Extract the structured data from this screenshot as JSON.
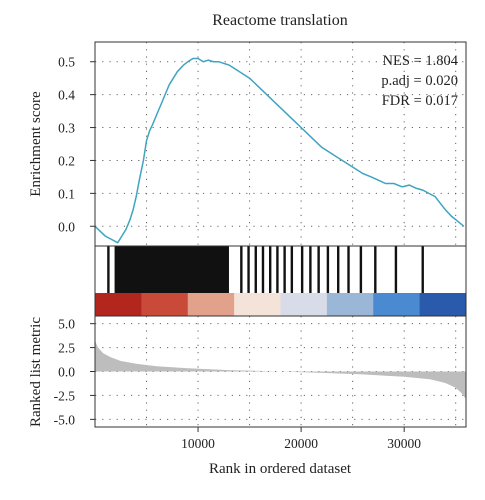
{
  "chart_data": [
    {
      "panel": "enrichment",
      "type": "line",
      "title": "Reactome translation",
      "ylabel": "Enrichment score",
      "xlim": [
        0,
        36000
      ],
      "ylim": [
        -0.06,
        0.56
      ],
      "yticks": [
        0.0,
        0.1,
        0.2,
        0.3,
        0.4,
        0.5
      ],
      "ytick_labels": [
        "0.0",
        "0.1",
        "0.2",
        "0.3",
        "0.4",
        "0.5"
      ],
      "grid": true,
      "series": [
        {
          "color": "#3fa4c0",
          "x": [
            0,
            1000,
            1600,
            2200,
            2600,
            3000,
            3400,
            3700,
            4000,
            4300,
            4700,
            5000,
            5300,
            5600,
            6000,
            6400,
            6800,
            7200,
            7600,
            8000,
            8300,
            8600,
            9000,
            9500,
            10000,
            10500,
            11000,
            11500,
            12000,
            12500,
            13000,
            13500,
            14000,
            15000,
            16000,
            17000,
            18000,
            19000,
            20000,
            21000,
            22000,
            23000,
            24000,
            25000,
            26000,
            26800,
            27500,
            28200,
            29000,
            29800,
            30500,
            31200,
            31800,
            32400,
            33000,
            33500,
            34000,
            34600,
            35200,
            35800
          ],
          "y": [
            0.0,
            -0.03,
            -0.04,
            -0.05,
            -0.03,
            -0.01,
            0.02,
            0.05,
            0.09,
            0.14,
            0.2,
            0.26,
            0.29,
            0.31,
            0.34,
            0.37,
            0.4,
            0.43,
            0.45,
            0.47,
            0.48,
            0.49,
            0.5,
            0.51,
            0.51,
            0.5,
            0.505,
            0.5,
            0.5,
            0.495,
            0.49,
            0.48,
            0.47,
            0.45,
            0.42,
            0.39,
            0.36,
            0.33,
            0.3,
            0.27,
            0.24,
            0.22,
            0.2,
            0.18,
            0.16,
            0.15,
            0.14,
            0.13,
            0.13,
            0.12,
            0.125,
            0.115,
            0.11,
            0.1,
            0.09,
            0.07,
            0.05,
            0.03,
            0.015,
            0.0
          ]
        }
      ],
      "stats": [
        "NES = 1.804",
        "p.adj = 0.020",
        "FDR = 0.017"
      ]
    },
    {
      "panel": "gene-hits",
      "type": "heatmap",
      "description_colors": [
        "#b3261e",
        "#c94a38",
        "#e2a18a",
        "#f3e3d8",
        "#d8dce8",
        "#9ab7d8",
        "#4a8ad0",
        "#2a5aab"
      ],
      "hit_dense_start": 1900,
      "hit_dense_end": 13000,
      "hits": [
        1300,
        14200,
        14900,
        15600,
        16300,
        17000,
        17700,
        18400,
        19100,
        20100,
        20900,
        21700,
        22600,
        23600,
        24600,
        25800,
        27200,
        29200,
        31800
      ]
    },
    {
      "panel": "ranked-list",
      "type": "area",
      "xlabel": "Rank in ordered dataset",
      "ylabel": "Ranked list metric",
      "xlim": [
        0,
        36000
      ],
      "ylim": [
        -5.8,
        5.8
      ],
      "yticks": [
        -5.0,
        -2.5,
        0.0,
        2.5,
        5.0
      ],
      "ytick_labels": [
        "-5.0",
        "-2.5",
        "0.0",
        "2.5",
        "5.0"
      ],
      "xticks": [
        10000,
        20000,
        30000
      ],
      "xtick_labels": [
        "10000",
        "20000",
        "30000"
      ],
      "grid": true,
      "fill_color": "#bdbdbd",
      "x": [
        0,
        300,
        800,
        1500,
        2500,
        4000,
        6000,
        9000,
        13000,
        18000,
        22000,
        26000,
        30000,
        32500,
        34000,
        35000,
        35600,
        36000
      ],
      "y": [
        3.2,
        2.5,
        1.9,
        1.5,
        1.1,
        0.8,
        0.55,
        0.35,
        0.15,
        0.0,
        -0.15,
        -0.3,
        -0.55,
        -0.8,
        -1.2,
        -1.7,
        -2.3,
        -2.9
      ]
    }
  ]
}
